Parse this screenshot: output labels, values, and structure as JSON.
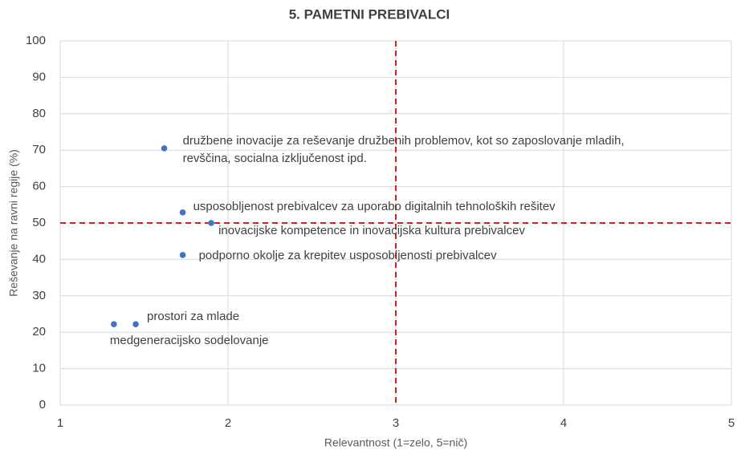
{
  "chart_data": {
    "type": "scatter",
    "title": "5. PAMETNI PREBIVALCI",
    "xlabel": "Relevantnost (1=zelo, 5=nič)",
    "ylabel": "Reševanje na ravni regije (%)",
    "x": [
      1.62,
      1.73,
      1.9,
      1.73,
      1.32,
      1.45
    ],
    "values": [
      70.5,
      52.9,
      50.0,
      41.2,
      22.2,
      22.2
    ],
    "labels": [
      [
        "družbene inovacije za reševanje družbenih problemov, kot so zaposlovanje mladih,",
        "revščina, socialna izključenost ipd."
      ],
      [
        "usposobljenost prebivalcev za uporabo digitalnih tehnoloških rešitev"
      ],
      [
        "inovacijske kompetence in inovacijska kultura prebivalcev"
      ],
      [
        "podporno okolje za krepitev usposobljenosti prebivalcev"
      ],
      [
        "medgeneracijsko sodelovanje"
      ],
      [
        "prostori za mlade"
      ]
    ],
    "color": "#4472c4",
    "xlim": [
      1,
      5
    ],
    "xticks": [
      1,
      2,
      3,
      4,
      5
    ],
    "ylim": [
      0,
      100
    ],
    "yticks": [
      0,
      10,
      20,
      30,
      40,
      50,
      60,
      70,
      80,
      90,
      100
    ],
    "grid": true,
    "reference_lines": {
      "x": 3,
      "y": 50,
      "color": "#e31a1c"
    }
  }
}
